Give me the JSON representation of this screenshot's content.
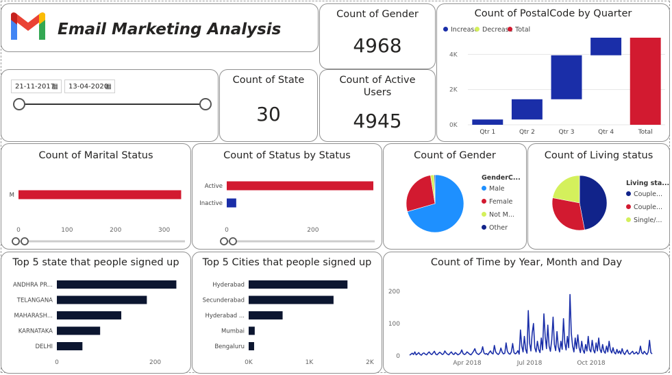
{
  "title": "Email Marketing Analysis",
  "date_filter": {
    "start": "21-11-2017",
    "end": "13-04-2020"
  },
  "kpis": {
    "gender": {
      "label": "Count of Gender",
      "value": "4968"
    },
    "state": {
      "label": "Count of State",
      "value": "30"
    },
    "active_users": {
      "label": "Count of Active Users",
      "value": "4945"
    }
  },
  "colors": {
    "increase": "#1a2ea8",
    "decrease": "#d4f05c",
    "total": "#d21a30",
    "dark_bar": "#0c1630",
    "line": "#1a2ea8",
    "pie_male": "#1e90ff",
    "pie_female": "#d21a30",
    "pie_notm": "#d4f05c",
    "pie_other": "#11238a"
  },
  "icons": [
    "gmail-logo-icon",
    "calendar-icon"
  ],
  "charts": {
    "postal": {
      "title": "Count of PostalCode by Quarter",
      "legend": [
        "Increase",
        "Decrease",
        "Total"
      ],
      "chart_data": {
        "type": "bar",
        "subtype": "waterfall",
        "categories": [
          "Qtr 1",
          "Qtr 2",
          "Qtr 3",
          "Qtr 4",
          "Total"
        ],
        "values": [
          300,
          1150,
          2500,
          1000,
          4950
        ],
        "kinds": [
          "increase",
          "increase",
          "increase",
          "increase",
          "total"
        ],
        "yticks": [
          "0K",
          "2K",
          "4K"
        ],
        "ytick_values": [
          0,
          2000,
          4000
        ],
        "ylim": [
          0,
          5300
        ]
      }
    },
    "marital": {
      "title": "Count of Marital Status",
      "chart_data": {
        "type": "bar",
        "orientation": "horizontal",
        "categories": [
          "M"
        ],
        "values": [
          335
        ],
        "xticks": [
          "0",
          "100",
          "200",
          "300"
        ],
        "xtick_values": [
          0,
          100,
          200,
          300
        ],
        "xlim": [
          0,
          340
        ]
      }
    },
    "status": {
      "title": "Count of Status by Status",
      "chart_data": {
        "type": "bar",
        "orientation": "horizontal",
        "categories": [
          "Active",
          "Inactive"
        ],
        "values": [
          340,
          22
        ],
        "xticks": [
          "0",
          "200"
        ],
        "xtick_values": [
          0,
          200
        ],
        "xlim": [
          0,
          340
        ]
      }
    },
    "gender_pie": {
      "title": "Count of Gender",
      "legend_title": "GenderC...",
      "chart_data": {
        "type": "pie",
        "labels": [
          "Male",
          "Female",
          "Not M...",
          "Other"
        ],
        "values": [
          70.5,
          27,
          2,
          0.5
        ],
        "colorkeys": [
          "pie_male",
          "pie_female",
          "pie_notm",
          "pie_other"
        ],
        "start_deg": 0
      }
    },
    "living_pie": {
      "title": "Count of Living status",
      "legend_title": "Living sta...",
      "chart_data": {
        "type": "pie",
        "labels": [
          "Couple...",
          "Couple...",
          "Single/..."
        ],
        "values": [
          47,
          31,
          22
        ],
        "colorkeys": [
          "pie_other",
          "pie_female",
          "pie_notm"
        ],
        "start_deg": 0
      }
    },
    "states": {
      "title": "Top 5 state that people signed up",
      "chart_data": {
        "type": "bar",
        "orientation": "horizontal",
        "categories": [
          "ANDHRA PR...",
          "TELANGANA",
          "MAHARASH...",
          "KARNATAKA",
          "DELHI"
        ],
        "values": [
          243,
          183,
          131,
          88,
          52
        ],
        "xticks": [
          "0",
          "200"
        ],
        "xtick_values": [
          0,
          200
        ],
        "xlim": [
          0,
          280
        ]
      }
    },
    "cities": {
      "title": "Top 5 Cities that people signed up",
      "chart_data": {
        "type": "bar",
        "orientation": "horizontal",
        "categories": [
          "Hyderabad",
          "Secunderabad",
          "Hyderabad ...",
          "Mumbai",
          "Bengaluru"
        ],
        "values": [
          1630,
          1400,
          560,
          100,
          90
        ],
        "xticks": [
          "0K",
          "1K",
          "2K"
        ],
        "xtick_values": [
          0,
          1000,
          2000
        ],
        "xlim": [
          0,
          2000
        ]
      }
    },
    "time": {
      "title": "Count of Time by Year, Month and Day",
      "chart_data": {
        "type": "line",
        "series": [
          {
            "values": [
              2,
              5,
              8,
              4,
              12,
              3,
              6,
              10,
              4,
              2,
              7,
              9,
              5,
              3,
              8,
              12,
              6,
              4,
              9,
              14,
              5,
              3,
              7,
              11,
              8,
              4,
              6,
              15,
              9,
              5,
              3,
              8,
              12,
              6,
              4,
              10,
              7,
              3,
              5,
              9,
              18,
              7,
              4,
              6,
              12,
              9,
              5,
              3,
              8,
              14,
              22,
              10,
              6,
              4,
              8,
              12,
              28,
              9,
              5,
              7,
              3,
              10,
              15,
              8,
              6,
              32,
              12,
              7,
              4,
              9,
              24,
              11,
              6,
              8,
              40,
              14,
              7,
              5,
              12,
              38,
              10,
              6,
              9,
              16,
              5,
              80,
              30,
              12,
              60,
              20,
              8,
              140,
              40,
              15,
              70,
              100,
              25,
              12,
              45,
              20,
              10,
              55,
              18,
              130,
              60,
              22,
              95,
              30,
              14,
              50,
              120,
              35,
              16,
              75,
              28,
              12,
              45,
              20,
              115,
              40,
              18,
              60,
              25,
              190,
              70,
              30,
              12,
              55,
              22,
              65,
              25,
              10,
              45,
              18,
              8,
              35,
              15,
              60,
              20,
              12,
              48,
              18,
              9,
              40,
              15,
              55,
              20,
              10,
              35,
              14,
              8,
              30,
              12,
              45,
              18,
              9,
              25,
              10,
              6,
              20,
              8,
              15,
              6,
              22,
              9,
              4,
              12,
              18,
              7,
              5,
              10,
              14,
              6,
              8,
              12,
              5,
              9,
              30,
              10,
              6,
              14,
              8,
              4,
              12,
              48,
              10,
              6
            ]
          }
        ],
        "xticks": [
          "Apr 2018",
          "Jul 2018",
          "Oct 2018"
        ],
        "yticks": [
          "0",
          "100",
          "200"
        ],
        "ytick_values": [
          0,
          100,
          200
        ],
        "ylim": [
          0,
          225
        ]
      }
    }
  }
}
